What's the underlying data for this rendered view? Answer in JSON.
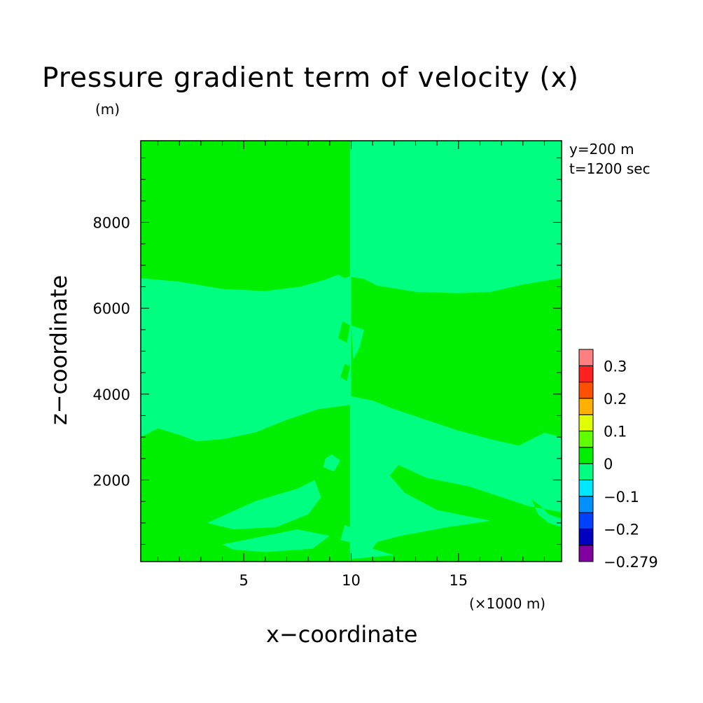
{
  "figure": {
    "title": "Pressure gradient term of velocity (x)",
    "y_unit": "(m)",
    "x_unit": "(×1000 m)",
    "xlabel": "x−coordinate",
    "ylabel": "z−coordinate",
    "info_y": "y=200 m",
    "info_t": "t=1200 sec"
  },
  "chart_data": {
    "type": "heatmap",
    "title": "Pressure gradient term of velocity (x)",
    "xlabel": "x−coordinate",
    "ylabel": "z−coordinate",
    "x_unit": "(×1000 m)",
    "y_unit": "(m)",
    "xlim": [
      0.2,
      19.8
    ],
    "ylim": [
      100,
      9900
    ],
    "x_ticks": [
      5,
      10,
      15
    ],
    "y_ticks": [
      2000,
      4000,
      6000,
      8000
    ],
    "colorbar": {
      "levels": [
        -0.279,
        -0.25,
        -0.2,
        -0.15,
        -0.1,
        -0.05,
        0,
        0.05,
        0.1,
        0.15,
        0.2,
        0.25,
        0.3,
        0.32
      ],
      "colors": [
        "#8000a0",
        "#0000c0",
        "#0040ff",
        "#0090ff",
        "#00e8ff",
        "#00ff80",
        "#00ee00",
        "#60ff00",
        "#e0ff00",
        "#ffb000",
        "#ff5000",
        "#ff2020",
        "#ff8080"
      ],
      "labels": [
        {
          "value": 0.3,
          "text": "0.3"
        },
        {
          "value": 0.2,
          "text": "0.2"
        },
        {
          "value": 0.1,
          "text": "0.1"
        },
        {
          "value": 0,
          "text": "0"
        },
        {
          "value": -0.1,
          "text": "−0.1"
        },
        {
          "value": -0.2,
          "text": "−0.2"
        },
        {
          "value": -0.279,
          "text": "−0.279"
        }
      ]
    },
    "field_colors": {
      "positive_small": "#00ee00",
      "negative_small": "#00ff80"
    },
    "regions": [
      {
        "sign": "positive_small",
        "points": [
          [
            0.2,
            6700
          ],
          [
            2,
            6620
          ],
          [
            4,
            6450
          ],
          [
            6,
            6400
          ],
          [
            7.6,
            6500
          ],
          [
            8.7,
            6650
          ],
          [
            9.4,
            6780
          ],
          [
            9.7,
            6700
          ],
          [
            9.95,
            6750
          ],
          [
            9.95,
            9900
          ],
          [
            0.2,
            9900
          ]
        ]
      },
      {
        "sign": "positive_small",
        "points": [
          [
            10,
            6730
          ],
          [
            10.6,
            6680
          ],
          [
            11.2,
            6530
          ],
          [
            13,
            6380
          ],
          [
            15,
            6350
          ],
          [
            16.5,
            6380
          ],
          [
            18,
            6550
          ],
          [
            19.8,
            6700
          ],
          [
            19.8,
            3000
          ],
          [
            19,
            3100
          ],
          [
            17.8,
            2800
          ],
          [
            16.5,
            2950
          ],
          [
            15,
            3150
          ],
          [
            13.5,
            3400
          ],
          [
            12,
            3650
          ],
          [
            11,
            3850
          ],
          [
            10,
            3950
          ]
        ]
      },
      {
        "sign": "positive_small",
        "points": [
          [
            0.2,
            3000
          ],
          [
            1,
            3200
          ],
          [
            2,
            3050
          ],
          [
            2.8,
            2900
          ],
          [
            4,
            2950
          ],
          [
            5.5,
            3100
          ],
          [
            7,
            3400
          ],
          [
            8.5,
            3650
          ],
          [
            9.95,
            3750
          ],
          [
            9.95,
            100
          ],
          [
            0.2,
            100
          ],
          [
            0.2,
            1100
          ],
          [
            1.2,
            1500
          ],
          [
            1.6,
            1700
          ],
          [
            1.3,
            1000
          ],
          [
            0.6,
            900
          ],
          [
            0.2,
            1000
          ]
        ]
      },
      {
        "sign": "negative_small",
        "points": [
          [
            3.3,
            1000
          ],
          [
            5.5,
            1500
          ],
          [
            7.5,
            1800
          ],
          [
            8.3,
            2000
          ],
          [
            8.6,
            1600
          ],
          [
            8,
            1200
          ],
          [
            6.5,
            900
          ],
          [
            4.5,
            850
          ]
        ]
      },
      {
        "sign": "negative_small",
        "points": [
          [
            4,
            500
          ],
          [
            6,
            700
          ],
          [
            7.5,
            850
          ],
          [
            9,
            700
          ],
          [
            8.2,
            400
          ],
          [
            6,
            320
          ],
          [
            4.5,
            380
          ]
        ]
      },
      {
        "sign": "negative_small",
        "points": [
          [
            8.7,
            2300
          ],
          [
            9.2,
            2200
          ],
          [
            9.5,
            2450
          ],
          [
            9.1,
            2600
          ],
          [
            8.8,
            2500
          ]
        ]
      },
      {
        "sign": "positive_small",
        "points": [
          [
            10,
            100
          ],
          [
            19.8,
            100
          ],
          [
            19.8,
            900
          ],
          [
            19.2,
            1000
          ],
          [
            18.7,
            1200
          ],
          [
            18.4,
            1550
          ],
          [
            18.8,
            1400
          ],
          [
            19.2,
            1200
          ],
          [
            19.8,
            1100
          ],
          [
            19.8,
            1250
          ],
          [
            18.2,
            1400
          ],
          [
            17,
            1600
          ],
          [
            15.5,
            1850
          ],
          [
            13.5,
            2050
          ],
          [
            12.2,
            2350
          ],
          [
            11.8,
            2100
          ],
          [
            12.5,
            1700
          ],
          [
            14,
            1300
          ],
          [
            16.5,
            1050
          ],
          [
            14.5,
            900
          ],
          [
            12.3,
            700
          ],
          [
            11.2,
            550
          ],
          [
            11,
            400
          ],
          [
            12,
            250
          ],
          [
            10,
            160
          ]
        ]
      },
      {
        "sign": "negative_small",
        "points": [
          [
            10,
            5600
          ],
          [
            10.6,
            5500
          ],
          [
            10.4,
            5100
          ],
          [
            10.1,
            4800
          ]
        ]
      },
      {
        "sign": "positive_small",
        "points": [
          [
            9.5,
            4400
          ],
          [
            9.8,
            4300
          ],
          [
            9.95,
            4650
          ],
          [
            9.7,
            4700
          ]
        ]
      },
      {
        "sign": "positive_small",
        "points": [
          [
            9.4,
            5300
          ],
          [
            9.8,
            5200
          ],
          [
            9.95,
            5600
          ],
          [
            9.6,
            5700
          ]
        ]
      },
      {
        "sign": "positive_small",
        "points": [
          [
            10,
            6350
          ],
          [
            10.4,
            6300
          ],
          [
            10.5,
            6050
          ],
          [
            10.1,
            6000
          ]
        ]
      },
      {
        "sign": "negative_small",
        "points": [
          [
            10.3,
            1100
          ],
          [
            11.3,
            1050
          ],
          [
            11.6,
            1400
          ],
          [
            10.8,
            1500
          ]
        ]
      },
      {
        "sign": "negative_small",
        "points": [
          [
            10.6,
            2700
          ],
          [
            11.2,
            2550
          ],
          [
            11.4,
            3000
          ],
          [
            10.9,
            3100
          ]
        ]
      },
      {
        "sign": "positive_small",
        "points": [
          [
            8.6,
            3200
          ],
          [
            9.2,
            3050
          ],
          [
            9.4,
            3350
          ],
          [
            8.9,
            3450
          ]
        ]
      },
      {
        "sign": "negative_small",
        "points": [
          [
            9.5,
            600
          ],
          [
            9.95,
            550
          ],
          [
            9.95,
            900
          ],
          [
            9.7,
            950
          ]
        ]
      }
    ]
  }
}
